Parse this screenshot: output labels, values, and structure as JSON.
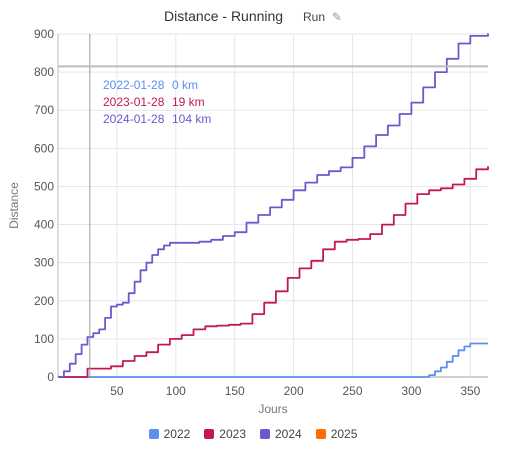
{
  "header": {
    "title": "Distance - Running",
    "sport_label": "Run",
    "edit_icon": "pencil-icon"
  },
  "chart_data": {
    "type": "line",
    "title": "Distance - Running",
    "xlabel": "Jours",
    "ylabel": "Distance",
    "xlim": [
      0,
      365
    ],
    "ylim": [
      0,
      900
    ],
    "xticks": [
      50,
      100,
      150,
      200,
      250,
      300,
      350
    ],
    "yticks": [
      0,
      100,
      200,
      300,
      400,
      500,
      600,
      700,
      800,
      900
    ],
    "grid": true,
    "legend_position": "bottom",
    "hover": {
      "x": 27,
      "y": 815
    },
    "tooltip": [
      {
        "date": "2022-01-28",
        "value": "0 km",
        "color": "#5b8ff0"
      },
      {
        "date": "2023-01-28",
        "value": "19 km",
        "color": "#c2185b"
      },
      {
        "date": "2024-01-28",
        "value": "104 km",
        "color": "#6a5acd"
      }
    ],
    "series": [
      {
        "name": "2022",
        "color": "#5b8ff0",
        "x": [
          0,
          310,
          315,
          320,
          325,
          330,
          335,
          340,
          345,
          350,
          365
        ],
        "y": [
          0,
          0,
          5,
          15,
          25,
          40,
          55,
          70,
          80,
          88,
          88
        ]
      },
      {
        "name": "2023",
        "color": "#c2185b",
        "x": [
          0,
          15,
          25,
          35,
          45,
          55,
          65,
          75,
          85,
          95,
          105,
          115,
          125,
          135,
          145,
          155,
          165,
          175,
          185,
          195,
          205,
          215,
          225,
          235,
          245,
          255,
          265,
          275,
          285,
          295,
          305,
          315,
          325,
          335,
          345,
          355,
          365
        ],
        "y": [
          0,
          0,
          22,
          22,
          28,
          42,
          55,
          65,
          85,
          100,
          110,
          125,
          133,
          135,
          137,
          140,
          165,
          195,
          225,
          260,
          285,
          305,
          335,
          355,
          360,
          362,
          375,
          400,
          425,
          455,
          480,
          490,
          495,
          505,
          520,
          545,
          553
        ]
      },
      {
        "name": "2024",
        "color": "#6a5acd",
        "x": [
          0,
          5,
          10,
          15,
          20,
          25,
          30,
          35,
          40,
          45,
          50,
          55,
          60,
          65,
          70,
          75,
          80,
          85,
          90,
          95,
          100,
          110,
          120,
          130,
          140,
          150,
          160,
          170,
          180,
          190,
          200,
          210,
          220,
          230,
          240,
          250,
          260,
          270,
          280,
          290,
          300,
          310,
          320,
          330,
          340,
          350,
          360,
          365
        ],
        "y": [
          0,
          15,
          35,
          60,
          85,
          105,
          115,
          125,
          155,
          185,
          190,
          195,
          220,
          250,
          280,
          300,
          320,
          335,
          345,
          352,
          352,
          352,
          355,
          360,
          370,
          380,
          405,
          425,
          445,
          465,
          490,
          510,
          530,
          540,
          550,
          575,
          605,
          635,
          660,
          690,
          720,
          760,
          800,
          835,
          875,
          895,
          895,
          902
        ]
      },
      {
        "name": "2025",
        "color": "#ff6d00",
        "x": [],
        "y": []
      }
    ]
  }
}
